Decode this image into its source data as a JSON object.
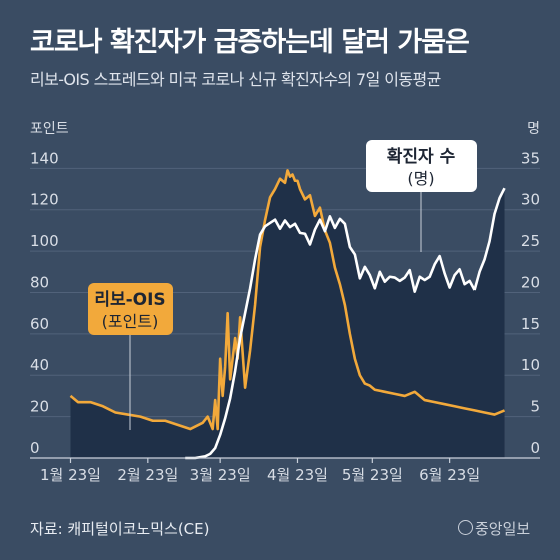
{
  "title": "코로나 확진자가 급증하는데 달러 가뭄은",
  "subtitle": "리보-OIS 스프레드와 미국 코로나 신규 확진자수의 7일 이동평균",
  "source": "자료: 캐피털이코노믹스(CE)",
  "logo": "중앙일보",
  "colors": {
    "background": "#3a4c63",
    "area": "#1f3048",
    "libor": "#f2a93b",
    "cases": "#ffffff"
  },
  "chart_data": {
    "type": "line",
    "x_tick_labels": [
      "1월 23일",
      "2월 23일",
      "3월 23일",
      "4월 23일",
      "5월 23일",
      "6월 23일"
    ],
    "x_ticks": [
      0,
      31,
      60,
      91,
      121,
      152
    ],
    "xlim": [
      -1,
      177
    ],
    "left_axis": {
      "unit": "포인트",
      "ticks": [
        0,
        20,
        40,
        60,
        80,
        100,
        120,
        140
      ],
      "ylim": [
        0,
        145
      ]
    },
    "right_axis": {
      "unit": "명",
      "ticks": [
        0,
        5,
        10,
        15,
        20,
        25,
        30,
        35
      ],
      "ylim": [
        0,
        36.25
      ]
    },
    "series": [
      {
        "name": "리보-OIS",
        "unit_label": "(포인트)",
        "axis": "left",
        "x": [
          0,
          3,
          8,
          13,
          18,
          23,
          28,
          33,
          38,
          43,
          48,
          53,
          55,
          57,
          58,
          59,
          60,
          61,
          62,
          63,
          64,
          66,
          67,
          68,
          70,
          72,
          74,
          76,
          78,
          80,
          82,
          84,
          86,
          87,
          88,
          89,
          90,
          91,
          92,
          94,
          96,
          98,
          100,
          102,
          104,
          106,
          108,
          110,
          112,
          114,
          116,
          118,
          120,
          122,
          126,
          130,
          134,
          138,
          142,
          146,
          150,
          154,
          158,
          162,
          166,
          170,
          174
        ],
        "values": [
          30,
          27,
          27,
          25,
          22,
          21,
          20,
          18,
          18,
          16,
          14,
          17,
          20,
          14,
          28,
          14,
          48,
          30,
          44,
          70,
          38,
          58,
          48,
          68,
          34,
          52,
          74,
          102,
          115,
          126,
          130,
          135,
          133,
          139,
          136,
          137,
          134,
          134,
          130,
          125,
          127,
          117,
          121,
          110,
          104,
          92,
          84,
          74,
          60,
          48,
          40,
          36,
          35,
          33,
          32,
          31,
          30,
          32,
          28,
          27,
          26,
          25,
          24,
          23,
          22,
          21,
          23
        ]
      },
      {
        "name": "확진자 수",
        "unit_label": "(명)",
        "axis": "right",
        "x": [
          46,
          50,
          54,
          56,
          58,
          60,
          62,
          64,
          66,
          68,
          70,
          72,
          74,
          76,
          78,
          80,
          82,
          84,
          86,
          88,
          90,
          92,
          94,
          96,
          98,
          100,
          102,
          104,
          106,
          108,
          110,
          112,
          114,
          116,
          118,
          120,
          122,
          124,
          126,
          128,
          130,
          132,
          134,
          136,
          138,
          140,
          142,
          144,
          146,
          148,
          150,
          152,
          154,
          156,
          158,
          160,
          162
        ],
        "values": [
          0,
          0,
          0.2,
          0.5,
          1.2,
          2.8,
          4.8,
          7.2,
          10.5,
          14.5,
          17.5,
          20.5,
          24,
          27,
          28,
          28.4,
          28.8,
          27.7,
          28.7,
          27.9,
          28.3,
          27.2,
          27.1,
          25.8,
          27.6,
          28.8,
          27.4,
          29.2,
          27.8,
          28.9,
          28.3,
          25.5,
          24.6,
          21.7,
          23.1,
          22.1,
          20.5,
          22.5,
          21.3,
          21.9,
          21.8,
          21.4,
          21.8,
          22.7,
          20.1,
          21.9,
          21.5,
          21.9,
          23.4,
          24.4,
          22.3,
          20.6,
          22.1,
          22.8,
          21.0,
          21.4,
          20.3
        ]
      }
    ],
    "cases_tail": {
      "x": [
        164,
        166,
        168,
        170,
        172,
        174
      ],
      "values": [
        22.5,
        24.0,
        26.2,
        29.5,
        31.4,
        32.6
      ]
    }
  }
}
